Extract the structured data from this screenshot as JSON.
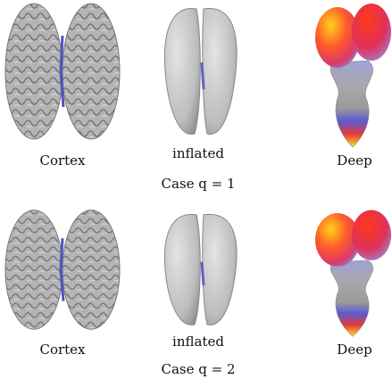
{
  "rows": [
    {
      "labels": [
        "Cortex",
        "inflated",
        "Deep"
      ],
      "caption": "Case q = 1"
    },
    {
      "labels": [
        "Cortex",
        "inflated",
        "Deep"
      ],
      "caption": "Case q = 2"
    }
  ]
}
